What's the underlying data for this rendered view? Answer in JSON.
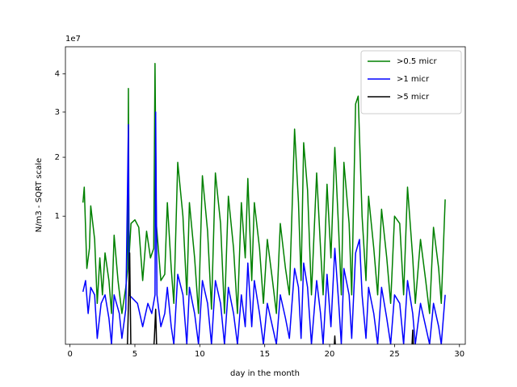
{
  "chart_data": {
    "type": "line",
    "xlabel": "day in the month",
    "ylabel": "N/m3 - SQRT scale",
    "y_offset_label": "1e7",
    "yscale": "sqrt",
    "xlim": [
      -0.35,
      30.45
    ],
    "ylim": [
      0.01,
      4.8
    ],
    "xticks": [
      0,
      5,
      10,
      15,
      20,
      25,
      30
    ],
    "yticks": [
      1,
      2,
      3,
      4
    ],
    "legend": "upper right",
    "series": [
      {
        "name": ">0.5 micr",
        "color": "#008000",
        "x": [
          1.0,
          1.1,
          1.3,
          1.5,
          1.6,
          1.9,
          2.1,
          2.3,
          2.5,
          2.7,
          3.0,
          3.2,
          3.4,
          3.7,
          4.0,
          4.3,
          4.45,
          4.5,
          4.55,
          4.7,
          5.0,
          5.3,
          5.6,
          5.9,
          6.2,
          6.45,
          6.55,
          6.65,
          7.0,
          7.3,
          7.5,
          7.8,
          8.0,
          8.3,
          8.7,
          9.0,
          9.2,
          9.6,
          9.9,
          10.2,
          10.6,
          10.9,
          11.2,
          11.6,
          11.9,
          12.2,
          12.6,
          12.9,
          13.2,
          13.5,
          13.7,
          14.0,
          14.2,
          14.6,
          14.9,
          15.2,
          15.6,
          15.9,
          16.2,
          16.6,
          16.9,
          17.3,
          17.6,
          17.8,
          18.0,
          18.3,
          18.6,
          19.0,
          19.3,
          19.5,
          19.8,
          20.1,
          20.4,
          20.7,
          20.9,
          21.1,
          21.5,
          21.7,
          22.0,
          22.2,
          22.5,
          22.8,
          23.0,
          23.4,
          23.7,
          24.0,
          24.4,
          24.7,
          25.0,
          25.4,
          25.7,
          26.0,
          26.4,
          26.6,
          27.0,
          27.4,
          27.7,
          28.0,
          28.4,
          28.6,
          28.9
        ],
        "values": [
          1.2,
          1.45,
          0.4,
          0.6,
          1.15,
          0.7,
          0.15,
          0.5,
          0.2,
          0.55,
          0.3,
          0.1,
          0.75,
          0.3,
          0.1,
          0.25,
          0.4,
          3.6,
          0.5,
          0.9,
          0.95,
          0.85,
          0.3,
          0.8,
          0.5,
          0.6,
          4.3,
          0.9,
          0.3,
          0.35,
          1.2,
          0.4,
          0.15,
          1.9,
          1.0,
          0.2,
          1.2,
          0.5,
          0.1,
          1.65,
          0.8,
          0.12,
          1.7,
          0.9,
          0.1,
          1.3,
          0.6,
          0.1,
          1.2,
          0.5,
          1.6,
          0.3,
          1.2,
          0.6,
          0.15,
          0.7,
          0.3,
          0.1,
          0.9,
          0.4,
          0.2,
          2.6,
          1.2,
          0.3,
          2.3,
          1.4,
          0.2,
          1.7,
          0.6,
          0.2,
          1.5,
          0.5,
          2.2,
          0.8,
          0.2,
          1.9,
          0.9,
          0.2,
          3.2,
          3.4,
          1.0,
          0.3,
          1.3,
          0.6,
          0.2,
          1.1,
          0.5,
          0.15,
          1.0,
          0.9,
          0.2,
          1.45,
          0.5,
          0.15,
          0.7,
          0.3,
          0.1,
          0.85,
          0.4,
          0.15,
          1.25
        ]
      },
      {
        "name": ">1 micr",
        "color": "#0000ff",
        "x": [
          1.0,
          1.2,
          1.4,
          1.6,
          1.9,
          2.1,
          2.4,
          2.7,
          3.0,
          3.2,
          3.4,
          3.8,
          4.0,
          4.3,
          4.5,
          4.55,
          4.8,
          5.2,
          5.6,
          6.0,
          6.3,
          6.55,
          6.6,
          6.7,
          7.0,
          7.3,
          7.5,
          7.8,
          8.0,
          8.3,
          8.7,
          9.0,
          9.2,
          9.6,
          9.9,
          10.2,
          10.6,
          10.9,
          11.2,
          11.6,
          11.9,
          12.2,
          12.6,
          12.9,
          13.2,
          13.5,
          13.7,
          14.0,
          14.2,
          14.6,
          14.9,
          15.2,
          15.6,
          15.9,
          16.2,
          16.6,
          16.9,
          17.3,
          17.6,
          17.8,
          18.0,
          18.3,
          18.6,
          19.0,
          19.3,
          19.5,
          19.8,
          20.1,
          20.4,
          20.7,
          20.9,
          21.1,
          21.5,
          21.7,
          22.0,
          22.3,
          22.5,
          22.8,
          23.0,
          23.4,
          23.7,
          24.0,
          24.4,
          24.7,
          25.0,
          25.4,
          25.7,
          26.0,
          26.4,
          26.6,
          27.0,
          27.4,
          27.7,
          28.0,
          28.4,
          28.6,
          28.9
        ],
        "values": [
          0.22,
          0.3,
          0.1,
          0.25,
          0.2,
          0.02,
          0.15,
          0.2,
          0.08,
          0.01,
          0.2,
          0.1,
          0.02,
          0.12,
          2.7,
          0.2,
          0.18,
          0.15,
          0.05,
          0.15,
          0.1,
          0.2,
          3.0,
          0.2,
          0.05,
          0.1,
          0.25,
          0.05,
          0.01,
          0.35,
          0.2,
          0.01,
          0.25,
          0.1,
          0.01,
          0.3,
          0.15,
          0.01,
          0.3,
          0.15,
          0.01,
          0.25,
          0.1,
          0.01,
          0.2,
          0.05,
          0.45,
          0.05,
          0.3,
          0.1,
          0.01,
          0.15,
          0.05,
          0.01,
          0.2,
          0.08,
          0.02,
          0.4,
          0.25,
          0.02,
          0.45,
          0.25,
          0.01,
          0.3,
          0.1,
          0.01,
          0.35,
          0.05,
          0.6,
          0.15,
          0.01,
          0.4,
          0.2,
          0.02,
          0.55,
          0.7,
          0.2,
          0.02,
          0.25,
          0.1,
          0.01,
          0.25,
          0.08,
          0.01,
          0.2,
          0.15,
          0.01,
          0.3,
          0.1,
          0.01,
          0.15,
          0.05,
          0.01,
          0.15,
          0.05,
          0.01,
          0.2
        ]
      },
      {
        "name": ">5 micr",
        "color": "#000000",
        "x": [
          1.0,
          4.4,
          4.6,
          4.7,
          6.4,
          6.5,
          6.6,
          6.7,
          20.3,
          20.4,
          20.5,
          26.3,
          26.4,
          26.5,
          28.9
        ],
        "values": [
          0,
          0,
          0.55,
          0,
          0,
          0.02,
          0.12,
          0,
          0,
          0.025,
          0,
          0,
          0.04,
          0,
          0
        ]
      }
    ]
  }
}
